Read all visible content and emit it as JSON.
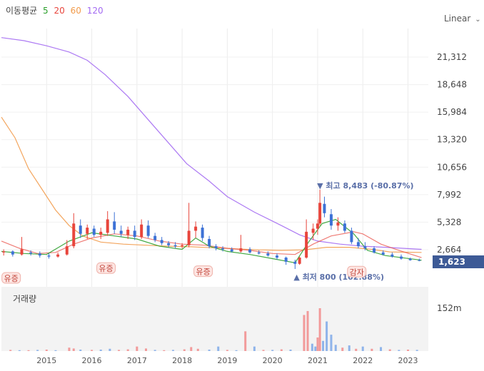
{
  "legend": {
    "title": "이동평균",
    "items": [
      {
        "label": "5",
        "color": "#2ca02c"
      },
      {
        "label": "20",
        "color": "#e8453c"
      },
      {
        "label": "60",
        "color": "#f29b4b"
      },
      {
        "label": "120",
        "color": "#a36af2"
      }
    ]
  },
  "scale_toggle": {
    "label": "Linear"
  },
  "volume_title": "거래량",
  "last_price": "1,623",
  "colors": {
    "up": "#e8453c",
    "down": "#3d72d6",
    "ma5": "#2ca02c",
    "ma20": "#e8453c",
    "ma60": "#f29b4b",
    "ma120": "#a36af2",
    "last": "#3d5a96"
  },
  "chart_data": {
    "type": "candlestick",
    "scale": "linear",
    "price_axis": {
      "ticks": [
        "21,312",
        "18,648",
        "15,984",
        "13,320",
        "10,656",
        "7,992",
        "5,328",
        "2,664"
      ],
      "tick_values": [
        21312,
        18648,
        15984,
        13320,
        10656,
        7992,
        5328,
        2664
      ]
    },
    "volume_axis": {
      "tick": "152m",
      "tick_value": 152
    },
    "x_axis": {
      "ticks": [
        "2015",
        "2016",
        "2017",
        "2018",
        "2019",
        "2020",
        "2021",
        "2022",
        "2023"
      ]
    },
    "annotations": {
      "high": {
        "marker": "▼",
        "label": "최고",
        "value": "8,483",
        "change": "(-80.87%)",
        "year": 2021.05
      },
      "low": {
        "marker": "▲",
        "label": "최저",
        "value": "800",
        "change": "(102.88%)",
        "year": 2020.5
      },
      "events": [
        {
          "label": "유증",
          "year": 2014.2,
          "price": 800
        },
        {
          "label": "유증",
          "year": 2016.3,
          "price": 1750
        },
        {
          "label": "유증",
          "year": 2018.45,
          "price": 1450
        },
        {
          "label": "감자",
          "year": 2021.85,
          "price": 1400
        }
      ]
    },
    "moving_averages": {
      "ma120": [
        [
          2014.0,
          23200
        ],
        [
          2014.5,
          22900
        ],
        [
          2015.0,
          22400
        ],
        [
          2015.5,
          21800
        ],
        [
          2015.9,
          21000
        ],
        [
          2016.3,
          19600
        ],
        [
          2016.8,
          17500
        ],
        [
          2017.2,
          15500
        ],
        [
          2017.7,
          13000
        ],
        [
          2018.1,
          11000
        ],
        [
          2018.6,
          9300
        ],
        [
          2019.0,
          7800
        ],
        [
          2019.6,
          6300
        ],
        [
          2020.2,
          5000
        ],
        [
          2020.6,
          4100
        ],
        [
          2021.0,
          3500
        ],
        [
          2021.5,
          3200
        ],
        [
          2022.0,
          3000
        ],
        [
          2022.5,
          2900
        ],
        [
          2023.3,
          2700
        ]
      ],
      "ma60": [
        [
          2014.0,
          15500
        ],
        [
          2014.3,
          13500
        ],
        [
          2014.6,
          10500
        ],
        [
          2014.9,
          8500
        ],
        [
          2015.2,
          6500
        ],
        [
          2015.5,
          5000
        ],
        [
          2015.8,
          4000
        ],
        [
          2016.2,
          3400
        ],
        [
          2016.7,
          3200
        ],
        [
          2017.2,
          3100
        ],
        [
          2017.7,
          3000
        ],
        [
          2018.2,
          2950
        ],
        [
          2018.7,
          2850
        ],
        [
          2019.2,
          2750
        ],
        [
          2019.7,
          2650
        ],
        [
          2020.2,
          2600
        ],
        [
          2020.7,
          2650
        ],
        [
          2021.2,
          2900
        ],
        [
          2021.7,
          2900
        ],
        [
          2022.2,
          2700
        ],
        [
          2022.6,
          2450
        ],
        [
          2023.3,
          2400
        ]
      ],
      "ma20": [
        [
          2014.0,
          3500
        ],
        [
          2014.4,
          2800
        ],
        [
          2014.8,
          2300
        ],
        [
          2015.2,
          2400
        ],
        [
          2015.6,
          3200
        ],
        [
          2016.0,
          3800
        ],
        [
          2016.5,
          4200
        ],
        [
          2017.0,
          4000
        ],
        [
          2017.5,
          3500
        ],
        [
          2018.0,
          3200
        ],
        [
          2018.5,
          3100
        ],
        [
          2019.0,
          2800
        ],
        [
          2019.5,
          2600
        ],
        [
          2020.0,
          2300
        ],
        [
          2020.5,
          2200
        ],
        [
          2020.9,
          3200
        ],
        [
          2021.3,
          4000
        ],
        [
          2021.8,
          4400
        ],
        [
          2022.0,
          4200
        ],
        [
          2022.4,
          3200
        ],
        [
          2022.8,
          2600
        ],
        [
          2023.3,
          1900
        ]
      ],
      "ma5": [
        [
          2014.0,
          2500
        ],
        [
          2014.5,
          2300
        ],
        [
          2015.0,
          2200
        ],
        [
          2015.5,
          3500
        ],
        [
          2016.0,
          4300
        ],
        [
          2016.5,
          4000
        ],
        [
          2017.0,
          3700
        ],
        [
          2017.5,
          3000
        ],
        [
          2018.0,
          2700
        ],
        [
          2018.3,
          3800
        ],
        [
          2018.6,
          3000
        ],
        [
          2019.0,
          2500
        ],
        [
          2019.5,
          2200
        ],
        [
          2020.0,
          1800
        ],
        [
          2020.5,
          1400
        ],
        [
          2020.8,
          3400
        ],
        [
          2021.1,
          5200
        ],
        [
          2021.4,
          5600
        ],
        [
          2021.8,
          4200
        ],
        [
          2022.1,
          2600
        ],
        [
          2022.5,
          2100
        ],
        [
          2023.3,
          1650
        ]
      ]
    },
    "candles": [
      [
        2014.05,
        2400,
        2700,
        2100,
        2500
      ],
      [
        2014.25,
        2500,
        2600,
        2000,
        2200
      ],
      [
        2014.45,
        2200,
        3900,
        2100,
        2700
      ],
      [
        2014.65,
        2400,
        2600,
        2100,
        2300
      ],
      [
        2014.85,
        2300,
        2500,
        1900,
        2100
      ],
      [
        2015.05,
        2100,
        2300,
        1800,
        2000
      ],
      [
        2015.25,
        2000,
        2400,
        1900,
        2200
      ],
      [
        2015.45,
        2200,
        3600,
        2100,
        3000
      ],
      [
        2015.6,
        3000,
        6200,
        2800,
        5200
      ],
      [
        2015.75,
        5000,
        5600,
        3800,
        4200
      ],
      [
        2015.9,
        4200,
        5100,
        3700,
        4800
      ],
      [
        2016.05,
        4700,
        5000,
        3900,
        4100
      ],
      [
        2016.2,
        4100,
        4800,
        3700,
        4400
      ],
      [
        2016.35,
        4300,
        6400,
        4000,
        5600
      ],
      [
        2016.5,
        5400,
        6300,
        4200,
        4600
      ],
      [
        2016.65,
        4500,
        5000,
        3900,
        4200
      ],
      [
        2016.8,
        4100,
        4900,
        3700,
        4600
      ],
      [
        2016.95,
        4500,
        5000,
        3600,
        3900
      ],
      [
        2017.1,
        3900,
        5600,
        3700,
        5100
      ],
      [
        2017.25,
        5000,
        5500,
        3800,
        4000
      ],
      [
        2017.4,
        4000,
        4300,
        3400,
        3600
      ],
      [
        2017.55,
        3600,
        3900,
        3100,
        3300
      ],
      [
        2017.7,
        3300,
        3500,
        2900,
        3100
      ],
      [
        2017.85,
        3100,
        3400,
        2800,
        3000
      ],
      [
        2018.0,
        3000,
        3300,
        2800,
        3100
      ],
      [
        2018.15,
        3100,
        7200,
        2900,
        4500
      ],
      [
        2018.3,
        4500,
        5400,
        3800,
        4900
      ],
      [
        2018.45,
        4800,
        5100,
        3500,
        3800
      ],
      [
        2018.6,
        3700,
        4000,
        2800,
        3000
      ],
      [
        2018.75,
        3000,
        3200,
        2600,
        2800
      ],
      [
        2018.9,
        2800,
        3000,
        2500,
        2700
      ],
      [
        2019.1,
        2700,
        2900,
        2400,
        2500
      ],
      [
        2019.3,
        2500,
        4100,
        2400,
        2800
      ],
      [
        2019.5,
        2700,
        2900,
        2300,
        2400
      ],
      [
        2019.7,
        2400,
        2600,
        2200,
        2300
      ],
      [
        2019.9,
        2300,
        2500,
        2000,
        2100
      ],
      [
        2020.1,
        2100,
        2300,
        1700,
        1900
      ],
      [
        2020.3,
        1900,
        2000,
        1200,
        1500
      ],
      [
        2020.5,
        1500,
        1700,
        800,
        1300
      ],
      [
        2020.6,
        1300,
        2000,
        1200,
        1900
      ],
      [
        2020.75,
        1900,
        5600,
        1800,
        4400
      ],
      [
        2020.9,
        4300,
        5200,
        3600,
        4700
      ],
      [
        2021.0,
        4700,
        5600,
        4100,
        5200
      ],
      [
        2021.05,
        5200,
        8483,
        5000,
        7200
      ],
      [
        2021.15,
        7100,
        7800,
        5800,
        6200
      ],
      [
        2021.3,
        6100,
        6600,
        4600,
        5000
      ],
      [
        2021.45,
        5000,
        5800,
        4500,
        5300
      ],
      [
        2021.6,
        5200,
        5500,
        4300,
        4500
      ],
      [
        2021.75,
        4500,
        4800,
        3200,
        3400
      ],
      [
        2021.9,
        3400,
        3800,
        2800,
        3000
      ],
      [
        2022.05,
        3000,
        3400,
        2600,
        2800
      ],
      [
        2022.25,
        2800,
        3000,
        2300,
        2400
      ],
      [
        2022.45,
        2400,
        2600,
        2100,
        2200
      ],
      [
        2022.65,
        2200,
        2400,
        1900,
        2000
      ],
      [
        2022.85,
        2000,
        2200,
        1700,
        1800
      ],
      [
        2023.05,
        1800,
        1900,
        1600,
        1650
      ],
      [
        2023.25,
        1650,
        1800,
        1550,
        1623
      ]
    ],
    "volume": [
      [
        2014.2,
        4,
        "up"
      ],
      [
        2014.4,
        3,
        "down"
      ],
      [
        2014.6,
        3,
        "up"
      ],
      [
        2014.8,
        4,
        "down"
      ],
      [
        2015.0,
        5,
        "up"
      ],
      [
        2015.2,
        3,
        "down"
      ],
      [
        2015.5,
        12,
        "up"
      ],
      [
        2015.6,
        9,
        "up"
      ],
      [
        2015.75,
        5,
        "down"
      ],
      [
        2016.0,
        4,
        "up"
      ],
      [
        2016.2,
        5,
        "down"
      ],
      [
        2016.4,
        8,
        "down"
      ],
      [
        2016.6,
        4,
        "up"
      ],
      [
        2016.8,
        6,
        "up"
      ],
      [
        2017.0,
        16,
        "up"
      ],
      [
        2017.2,
        9,
        "up"
      ],
      [
        2017.4,
        4,
        "down"
      ],
      [
        2017.6,
        3,
        "up"
      ],
      [
        2017.8,
        4,
        "down"
      ],
      [
        2018.05,
        6,
        "up"
      ],
      [
        2018.2,
        14,
        "up"
      ],
      [
        2018.35,
        8,
        "up"
      ],
      [
        2018.6,
        5,
        "down"
      ],
      [
        2018.8,
        16,
        "down"
      ],
      [
        2019.0,
        4,
        "up"
      ],
      [
        2019.2,
        3,
        "down"
      ],
      [
        2019.4,
        70,
        "up"
      ],
      [
        2019.6,
        16,
        "down"
      ],
      [
        2019.8,
        4,
        "up"
      ],
      [
        2020.0,
        4,
        "down"
      ],
      [
        2020.2,
        6,
        "up"
      ],
      [
        2020.4,
        5,
        "down"
      ],
      [
        2020.7,
        128,
        "up"
      ],
      [
        2020.78,
        142,
        "up"
      ],
      [
        2020.88,
        26,
        "down"
      ],
      [
        2020.95,
        16,
        "down"
      ],
      [
        2021.0,
        48,
        "up"
      ],
      [
        2021.05,
        152,
        "up"
      ],
      [
        2021.12,
        36,
        "down"
      ],
      [
        2021.2,
        105,
        "down"
      ],
      [
        2021.3,
        58,
        "down"
      ],
      [
        2021.4,
        22,
        "down"
      ],
      [
        2021.55,
        12,
        "up"
      ],
      [
        2021.7,
        20,
        "down"
      ],
      [
        2021.85,
        8,
        "up"
      ],
      [
        2022.0,
        16,
        "down"
      ],
      [
        2022.2,
        8,
        "up"
      ],
      [
        2022.4,
        14,
        "down"
      ],
      [
        2022.6,
        6,
        "up"
      ],
      [
        2022.8,
        4,
        "down"
      ],
      [
        2023.0,
        5,
        "up"
      ],
      [
        2023.2,
        4,
        "down"
      ]
    ]
  }
}
